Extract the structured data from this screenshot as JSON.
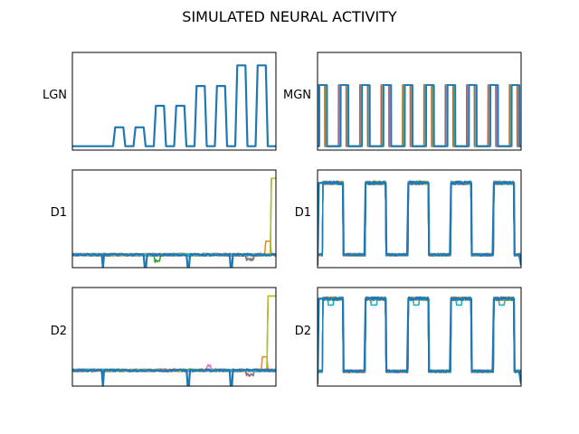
{
  "title": "SIMULATED NEURAL ACTIVITY",
  "colors": {
    "primary": "#1f77b4",
    "tab10": [
      "#1f77b4",
      "#ff7f0e",
      "#2ca02c",
      "#d62728",
      "#9467bd",
      "#8c564b",
      "#e377c2",
      "#7f7f7f",
      "#bcbd22",
      "#17becf"
    ]
  },
  "chart_data": [
    {
      "type": "line",
      "ylabel": "LGN",
      "position": "row-1-left",
      "xlim": [
        0,
        100
      ],
      "ylim": [
        0,
        1
      ],
      "series": [
        {
          "x": [
            0,
            5,
            10,
            20,
            21,
            22,
            23,
            25,
            26,
            30,
            31,
            32,
            33,
            35,
            36,
            40,
            41,
            42,
            43,
            45,
            46,
            50,
            51,
            52,
            53,
            55,
            56,
            60,
            61,
            62,
            63,
            65,
            66,
            70,
            71,
            72,
            73,
            75,
            76,
            80,
            81,
            82,
            83,
            85,
            86,
            90,
            91,
            92,
            93,
            95,
            96,
            100
          ],
          "y": [
            0,
            0,
            0,
            0,
            0.21,
            0.21,
            0.21,
            0.21,
            0,
            0,
            0.21,
            0.21,
            0.21,
            0.21,
            0,
            0,
            0.45,
            0.45,
            0.45,
            0.45,
            0,
            0,
            0.45,
            0.45,
            0.45,
            0.45,
            0,
            0,
            0.67,
            0.67,
            0.67,
            0.67,
            0,
            0,
            0.67,
            0.67,
            0.67,
            0.67,
            0,
            0,
            0.9,
            0.9,
            0.9,
            0.9,
            0,
            0,
            0.9,
            0.9,
            0.9,
            0.9,
            0,
            0
          ]
        }
      ]
    },
    {
      "type": "line",
      "ylabel": "MGN",
      "position": "row-1-right",
      "xlim": [
        0,
        100
      ],
      "ylim": [
        0,
        1
      ],
      "pulse_starts": [
        0,
        10.5,
        21,
        31.5,
        42,
        52.5,
        63,
        73.5,
        84,
        94.5
      ],
      "pulse_width": 4.2,
      "pulse_high": 0.68
    },
    {
      "type": "line",
      "ylabel": "D1",
      "position": "row-2-left",
      "xlim": [
        0,
        100
      ],
      "ylim": [
        0,
        1
      ],
      "baseline": 0.1,
      "dip_positions": [
        15,
        36,
        57,
        78
      ],
      "late_rise_x": 97.5,
      "late_rise_y": 0.95
    },
    {
      "type": "line",
      "ylabel": "D1",
      "position": "row-2-right",
      "xlim": [
        0,
        100
      ],
      "ylim": [
        0,
        1
      ],
      "pulse_starts": [
        2,
        23,
        44,
        65,
        86
      ],
      "pulse_width": 10.5,
      "high": 0.9,
      "low": 0.1
    },
    {
      "type": "line",
      "ylabel": "D2",
      "position": "row-3-left",
      "xlim": [
        0,
        100
      ],
      "ylim": [
        0,
        1
      ],
      "baseline": 0.13,
      "dip_positions": [
        15,
        57,
        78
      ],
      "late_rise_x": 96,
      "late_rise_y": 0.95
    },
    {
      "type": "line",
      "ylabel": "D2",
      "position": "row-3-right",
      "xlim": [
        0,
        100
      ],
      "ylim": [
        0,
        1
      ],
      "pulse_starts": [
        2,
        23,
        44,
        65,
        86
      ],
      "pulse_width": 10.5,
      "high": 0.92,
      "low": 0.12
    }
  ]
}
